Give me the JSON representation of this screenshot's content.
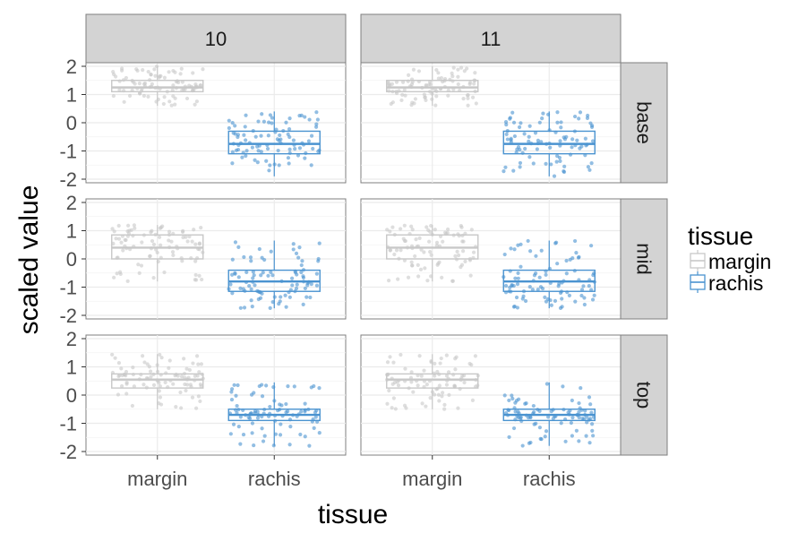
{
  "chart_data": {
    "type": "boxplot",
    "xlabel": "tissue",
    "ylabel": "scaled value",
    "ylim": [
      -2,
      2
    ],
    "y_ticks": [
      "-2",
      "-1",
      "0",
      "1",
      "2"
    ],
    "categories": [
      "margin",
      "rachis"
    ],
    "facet_cols": [
      "10",
      "11"
    ],
    "facet_rows": [
      "base",
      "mid",
      "top"
    ],
    "legend": {
      "title": "tissue",
      "placement": "right",
      "entries": [
        {
          "label": "margin",
          "color": "#c8c8c8"
        },
        {
          "label": "rachis",
          "color": "#4a93d0"
        }
      ]
    },
    "grid": true,
    "colors": {
      "margin": "#c8c8c8",
      "rachis": "#4a93d0",
      "strip_fill": "#d3d3d3",
      "grid": "#ebebeb"
    },
    "panels": [
      {
        "col": "10",
        "row": "base",
        "boxes": [
          {
            "category": "margin",
            "q1": 1.1,
            "median": 1.25,
            "q3": 1.5,
            "whisker_low": 0.6,
            "whisker_high": 2.0
          },
          {
            "category": "rachis",
            "q1": -1.1,
            "median": -0.75,
            "q3": -0.3,
            "whisker_low": -1.9,
            "whisker_high": 0.4
          }
        ]
      },
      {
        "col": "11",
        "row": "base",
        "boxes": [
          {
            "category": "margin",
            "q1": 1.1,
            "median": 1.25,
            "q3": 1.5,
            "whisker_low": 0.6,
            "whisker_high": 2.0
          },
          {
            "category": "rachis",
            "q1": -1.1,
            "median": -0.75,
            "q3": -0.3,
            "whisker_low": -1.9,
            "whisker_high": 0.4
          }
        ]
      },
      {
        "col": "10",
        "row": "mid",
        "boxes": [
          {
            "category": "margin",
            "q1": 0.0,
            "median": 0.4,
            "q3": 0.85,
            "whisker_low": -0.8,
            "whisker_high": 1.2
          },
          {
            "category": "rachis",
            "q1": -1.15,
            "median": -0.8,
            "q3": -0.4,
            "whisker_low": -1.75,
            "whisker_high": 0.65
          }
        ]
      },
      {
        "col": "11",
        "row": "mid",
        "boxes": [
          {
            "category": "margin",
            "q1": 0.0,
            "median": 0.4,
            "q3": 0.85,
            "whisker_low": -0.8,
            "whisker_high": 1.2
          },
          {
            "category": "rachis",
            "q1": -1.15,
            "median": -0.8,
            "q3": -0.4,
            "whisker_low": -1.75,
            "whisker_high": 0.65
          }
        ]
      },
      {
        "col": "10",
        "row": "top",
        "boxes": [
          {
            "category": "margin",
            "q1": 0.25,
            "median": 0.55,
            "q3": 0.75,
            "whisker_low": -0.5,
            "whisker_high": 1.45
          },
          {
            "category": "rachis",
            "q1": -0.9,
            "median": -0.7,
            "q3": -0.5,
            "whisker_low": -1.8,
            "whisker_high": 0.45
          }
        ]
      },
      {
        "col": "11",
        "row": "top",
        "boxes": [
          {
            "category": "margin",
            "q1": 0.25,
            "median": 0.55,
            "q3": 0.75,
            "whisker_low": -0.5,
            "whisker_high": 1.45
          },
          {
            "category": "rachis",
            "q1": -0.9,
            "median": -0.7,
            "q3": -0.5,
            "whisker_low": -1.8,
            "whisker_high": 0.45
          }
        ]
      }
    ]
  }
}
